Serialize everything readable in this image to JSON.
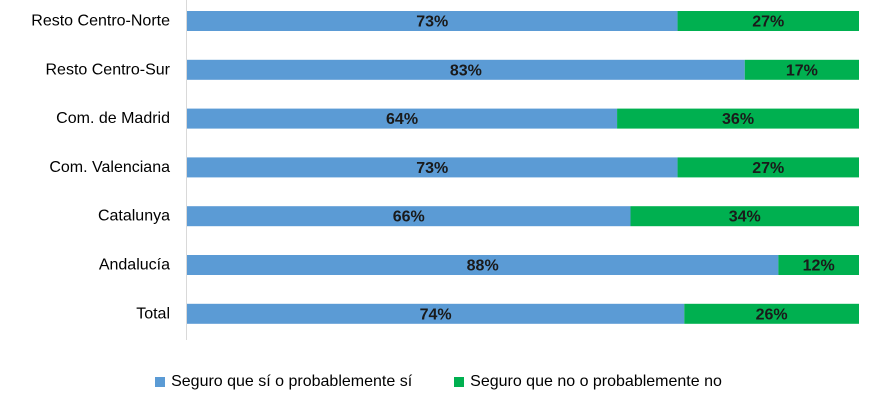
{
  "chart_data": {
    "type": "bar",
    "orientation": "horizontal",
    "stacked": "percent",
    "categories": [
      "Resto Centro-Norte",
      "Resto Centro-Sur",
      "Com. de Madrid",
      "Com. Valenciana",
      "Catalunya",
      "Andalucía",
      "Total"
    ],
    "series": [
      {
        "name": "Seguro que sí o probablemente sí",
        "color": "#5B9BD5",
        "values": [
          73,
          83,
          64,
          73,
          66,
          88,
          74
        ],
        "labels": [
          "73%",
          "83%",
          "64%",
          "73%",
          "66%",
          "88%",
          "74%"
        ]
      },
      {
        "name": "Seguro que no o probablemente no",
        "color": "#00B050",
        "values": [
          27,
          17,
          36,
          27,
          34,
          12,
          26
        ],
        "labels": [
          "27%",
          "17%",
          "36%",
          "27%",
          "34%",
          "12%",
          "26%"
        ]
      }
    ],
    "xlim": [
      0,
      100
    ],
    "grid": false,
    "legend_position": "bottom"
  }
}
